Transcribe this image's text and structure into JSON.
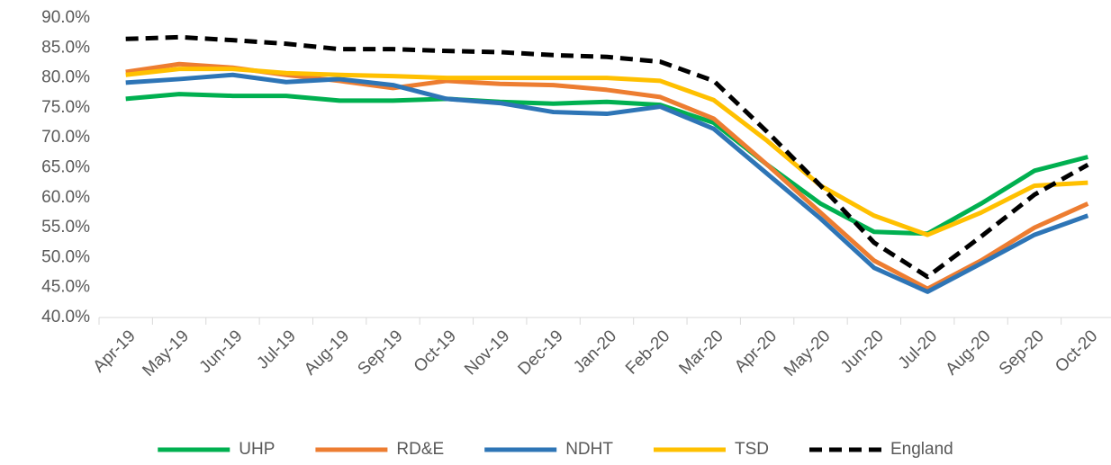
{
  "chart_data": {
    "type": "line",
    "categories": [
      "Apr-19",
      "May-19",
      "Jun-19",
      "Jul-19",
      "Aug-19",
      "Sep-19",
      "Oct-19",
      "Nov-19",
      "Dec-19",
      "Jan-20",
      "Feb-20",
      "Mar-20",
      "Apr-20",
      "May-20",
      "Jun-20",
      "Jul-20",
      "Aug-20",
      "Sep-20",
      "Oct-20"
    ],
    "series": [
      {
        "name": "UHP",
        "color": "#00b050",
        "style": "solid",
        "values": [
          76.5,
          77.3,
          77.0,
          77.0,
          76.2,
          76.2,
          76.5,
          76.0,
          75.7,
          76.0,
          75.5,
          72.5,
          65.5,
          59.0,
          54.3,
          54.0,
          59.0,
          64.5,
          66.8
        ]
      },
      {
        "name": "RD&E",
        "color": "#ed7d31",
        "style": "solid",
        "values": [
          81.0,
          82.3,
          81.7,
          80.5,
          79.5,
          78.3,
          79.5,
          79.0,
          78.8,
          78.0,
          76.8,
          73.2,
          65.5,
          57.5,
          49.5,
          44.8,
          49.5,
          55.0,
          59.0
        ]
      },
      {
        "name": "NDHT",
        "color": "#2e75b6",
        "style": "solid",
        "values": [
          79.2,
          79.8,
          80.5,
          79.3,
          79.8,
          78.8,
          76.5,
          75.8,
          74.3,
          74.0,
          75.2,
          71.5,
          64.0,
          56.5,
          48.3,
          44.3,
          49.0,
          53.8,
          57.0
        ]
      },
      {
        "name": "TSD",
        "color": "#ffc000",
        "style": "solid",
        "values": [
          80.5,
          81.5,
          81.5,
          80.8,
          80.5,
          80.3,
          80.0,
          80.0,
          80.0,
          80.0,
          79.5,
          76.3,
          69.5,
          62.0,
          57.0,
          53.8,
          57.5,
          62.0,
          62.5
        ]
      },
      {
        "name": "England",
        "color": "#000000",
        "style": "dashed",
        "values": [
          86.5,
          86.8,
          86.3,
          85.7,
          84.8,
          84.8,
          84.5,
          84.3,
          83.8,
          83.5,
          82.7,
          79.5,
          71.0,
          62.0,
          52.5,
          46.8,
          53.5,
          60.5,
          65.5
        ]
      }
    ],
    "ylim": [
      40,
      90
    ],
    "yticks": [
      {
        "value": 40,
        "label": "40.0%"
      },
      {
        "value": 45,
        "label": "45.0%"
      },
      {
        "value": 50,
        "label": "50.0%"
      },
      {
        "value": 55,
        "label": "55.0%"
      },
      {
        "value": 60,
        "label": "60.0%"
      },
      {
        "value": 65,
        "label": "65.0%"
      },
      {
        "value": 70,
        "label": "70.0%"
      },
      {
        "value": 75,
        "label": "75.0%"
      },
      {
        "value": 80,
        "label": "80.0%"
      },
      {
        "value": 85,
        "label": "85.0%"
      },
      {
        "value": 90,
        "label": "90.0%"
      }
    ],
    "grid": false,
    "legend": "bottom"
  }
}
